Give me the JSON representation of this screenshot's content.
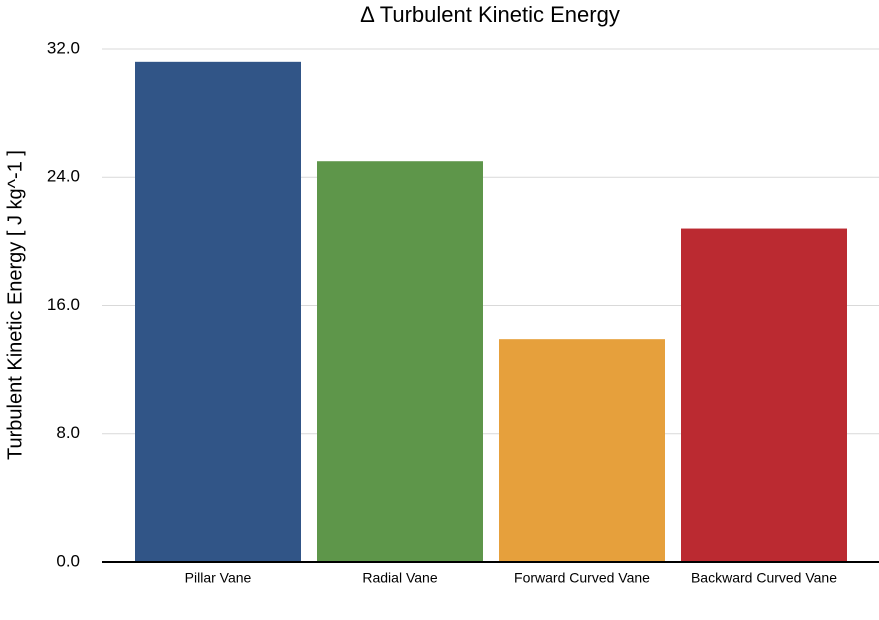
{
  "chart_data": {
    "type": "bar",
    "title": "Δ Turbulent Kinetic Energy",
    "y_label": "Turbulent Kinetic Energy [ J kg^-1 ]",
    "categories": [
      "Pillar Vane",
      "Radial Vane",
      "Forward Curved Vane",
      "Backward Curved Vane"
    ],
    "values": [
      31.2,
      25.0,
      13.9,
      20.8
    ],
    "colors": [
      "#315587",
      "#5e964a",
      "#e6a03c",
      "#bb2a31"
    ],
    "ylim": [
      0,
      32
    ],
    "yticks": [
      {
        "value": 0,
        "label": "0.0"
      },
      {
        "value": 8,
        "label": "8.0"
      },
      {
        "value": 16,
        "label": "16.0"
      },
      {
        "value": 24,
        "label": "24.0"
      },
      {
        "value": 32,
        "label": "32.0"
      }
    ],
    "grid": true
  }
}
